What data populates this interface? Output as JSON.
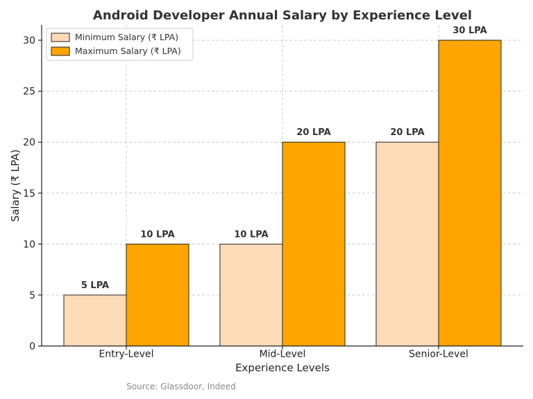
{
  "chart_data": {
    "type": "bar",
    "title": "Android Developer Annual Salary by Experience Level",
    "xlabel": "Experience Levels",
    "ylabel": "Salary (₹ LPA)",
    "categories": [
      "Entry-Level",
      "Mid-Level",
      "Senior-Level"
    ],
    "series": [
      {
        "name": "Minimum Salary (₹ LPA)",
        "values": [
          5,
          10,
          20
        ],
        "color": "#FDDBB9",
        "labels": [
          "5 LPA",
          "10 LPA",
          "20 LPA"
        ]
      },
      {
        "name": "Maximum Salary (₹ LPA)",
        "values": [
          10,
          20,
          30
        ],
        "color": "#FFA500",
        "labels": [
          "10 LPA",
          "20 LPA",
          "30 LPA"
        ]
      }
    ],
    "ylim": [
      0,
      31.5
    ],
    "yticks": [
      0,
      5,
      10,
      15,
      20,
      25,
      30
    ],
    "grid": true,
    "legend_position": "top-left",
    "source_note": "Source: Glassdoor, Indeed"
  }
}
